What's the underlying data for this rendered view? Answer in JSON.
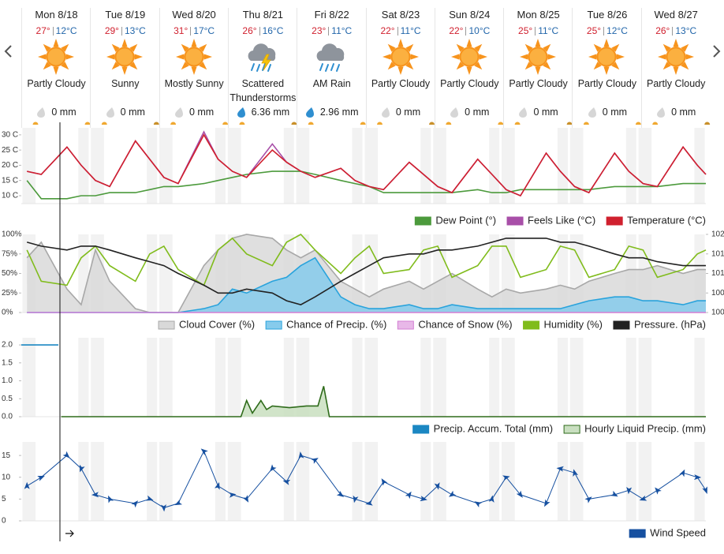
{
  "days": [
    {
      "date": "Mon 8/18",
      "high": "27°",
      "low": "12°C",
      "condition": "Partly Cloudy",
      "precip": "0 mm"
    },
    {
      "date": "Tue 8/19",
      "high": "29°",
      "low": "13°C",
      "condition": "Sunny",
      "precip": "0 mm"
    },
    {
      "date": "Wed 8/20",
      "high": "31°",
      "low": "17°C",
      "condition": "Mostly Sunny",
      "precip": "0 mm"
    },
    {
      "date": "Thu 8/21",
      "high": "26°",
      "low": "16°C",
      "condition": "Scattered Thunderstorms",
      "precip": "6.36 mm"
    },
    {
      "date": "Fri 8/22",
      "high": "23°",
      "low": "11°C",
      "condition": "AM Rain",
      "precip": "2.96 mm"
    },
    {
      "date": "Sat 8/23",
      "high": "22°",
      "low": "11°C",
      "condition": "Partly Cloudy",
      "precip": "0 mm"
    },
    {
      "date": "Sun 8/24",
      "high": "22°",
      "low": "10°C",
      "condition": "Partly Cloudy",
      "precip": "0 mm"
    },
    {
      "date": "Mon 8/25",
      "high": "25°",
      "low": "11°C",
      "condition": "Partly Cloudy",
      "precip": "0 mm"
    },
    {
      "date": "Tue 8/26",
      "high": "25°",
      "low": "12°C",
      "condition": "Partly Cloudy",
      "precip": "0 mm"
    },
    {
      "date": "Wed 8/27",
      "high": "26°",
      "low": "13°C",
      "condition": "Partly Cloudy",
      "precip": "0 mm"
    }
  ],
  "chart_data": [
    {
      "type": "line",
      "xlim": [
        0,
        240
      ],
      "ylim": [
        7.4,
        32.3
      ],
      "yticks": [
        {
          "value": 10,
          "label": "10 C"
        },
        {
          "value": 15,
          "label": "15 C"
        },
        {
          "value": 20,
          "label": "20 C"
        },
        {
          "value": 25,
          "label": "25 C"
        },
        {
          "value": 30,
          "label": "30 C"
        }
      ],
      "x": [
        2,
        7,
        16,
        21,
        26,
        31,
        40,
        45,
        50,
        55,
        64,
        69,
        74,
        79,
        88,
        93,
        98,
        103,
        112,
        117,
        122,
        127,
        136,
        141,
        146,
        151,
        160,
        165,
        170,
        175,
        184,
        189,
        194,
        199,
        208,
        213,
        218,
        223,
        232,
        237,
        240
      ],
      "series": [
        {
          "name": "Dew Point (°)",
          "color": "#4c9a3c",
          "values": [
            15,
            9,
            9,
            10,
            10,
            11,
            11,
            12,
            13,
            13,
            14,
            15,
            16,
            17,
            18,
            18,
            18,
            17,
            15,
            14,
            13,
            11,
            11,
            11,
            11,
            11,
            12,
            11,
            11,
            12,
            12,
            12,
            12,
            12,
            13,
            13,
            13,
            13,
            14,
            14,
            14
          ]
        },
        {
          "name": "Feels Like (°C)",
          "color": "#a84fa8",
          "values": [
            18,
            17,
            26,
            20,
            15,
            13,
            28,
            22,
            16,
            14,
            31,
            22,
            18,
            16,
            27,
            21,
            18,
            16,
            19,
            15,
            13,
            12,
            21,
            17,
            13,
            11,
            22,
            17,
            12,
            10,
            24,
            18,
            13,
            11,
            24,
            18,
            14,
            13,
            26,
            20,
            17
          ]
        },
        {
          "name": "Temperature (°C)",
          "color": "#d0202e",
          "values": [
            18,
            17,
            26,
            20,
            15,
            13,
            28,
            22,
            16,
            14,
            30,
            22,
            18,
            16,
            25,
            21,
            18,
            16,
            19,
            15,
            13,
            12,
            21,
            17,
            13,
            11,
            22,
            17,
            12,
            10,
            24,
            18,
            13,
            11,
            24,
            18,
            14,
            13,
            26,
            20,
            17
          ]
        }
      ]
    },
    {
      "type": "line",
      "xlim": [
        0,
        240
      ],
      "ylim": [
        0,
        100
      ],
      "y2lim": [
        1000,
        1020
      ],
      "yticks": [
        {
          "value": 0,
          "label": "0%"
        },
        {
          "value": 25,
          "label": "25%"
        },
        {
          "value": 50,
          "label": "50%"
        },
        {
          "value": 75,
          "label": "75%"
        },
        {
          "value": 100,
          "label": "100%"
        }
      ],
      "y2ticks": [
        {
          "value": 1000,
          "label": "100"
        },
        {
          "value": 1005,
          "label": "100"
        },
        {
          "value": 1010,
          "label": "101"
        },
        {
          "value": 1015,
          "label": "101"
        },
        {
          "value": 1020,
          "label": "102"
        }
      ],
      "x": [
        2,
        7,
        16,
        21,
        26,
        31,
        40,
        45,
        50,
        55,
        64,
        69,
        74,
        79,
        88,
        93,
        98,
        103,
        112,
        117,
        122,
        127,
        136,
        141,
        146,
        151,
        160,
        165,
        170,
        175,
        184,
        189,
        194,
        199,
        208,
        213,
        218,
        223,
        232,
        237,
        240
      ],
      "series": [
        {
          "name": "Cloud Cover (%)",
          "color": "#a8a8a8",
          "fill": "#d9d9d9",
          "type": "area",
          "values": [
            70,
            90,
            30,
            10,
            80,
            40,
            5,
            0,
            0,
            0,
            60,
            80,
            95,
            100,
            95,
            80,
            70,
            80,
            40,
            30,
            20,
            30,
            40,
            30,
            40,
            50,
            30,
            20,
            30,
            25,
            30,
            35,
            30,
            40,
            50,
            55,
            55,
            60,
            50,
            55,
            55
          ]
        },
        {
          "name": "Chance of Precip. (%)",
          "color": "#29a3dc",
          "fill": "#86cbec",
          "type": "area",
          "values": [
            0,
            0,
            0,
            0,
            0,
            0,
            0,
            0,
            0,
            0,
            5,
            10,
            30,
            25,
            40,
            45,
            60,
            70,
            20,
            10,
            5,
            5,
            10,
            5,
            5,
            10,
            5,
            5,
            5,
            5,
            5,
            5,
            10,
            15,
            20,
            20,
            15,
            15,
            10,
            15,
            15
          ]
        },
        {
          "name": "Chance of Snow (%)",
          "color": "#d37fd3",
          "fill": "#e8b8e8",
          "type": "area",
          "values": [
            0,
            0,
            0,
            0,
            0,
            0,
            0,
            0,
            0,
            0,
            0,
            0,
            0,
            0,
            0,
            0,
            0,
            0,
            0,
            0,
            0,
            0,
            0,
            0,
            0,
            0,
            0,
            0,
            0,
            0,
            0,
            0,
            0,
            0,
            0,
            0,
            0,
            0,
            0,
            0,
            0
          ]
        },
        {
          "name": "Humidity (%)",
          "color": "#80bc1c",
          "values": [
            80,
            40,
            35,
            70,
            85,
            60,
            40,
            75,
            85,
            55,
            35,
            80,
            95,
            75,
            60,
            90,
            100,
            80,
            50,
            70,
            85,
            50,
            55,
            80,
            85,
            45,
            60,
            85,
            85,
            45,
            55,
            85,
            80,
            45,
            55,
            85,
            80,
            45,
            55,
            75,
            80
          ]
        },
        {
          "name": "Pressure. (hPa)",
          "color": "#222222",
          "axis": "y2",
          "values": [
            1018,
            1017,
            1016,
            1017,
            1017,
            1016,
            1014,
            1013,
            1012,
            1010,
            1007,
            1005,
            1005,
            1006,
            1005,
            1003,
            1002,
            1004,
            1008,
            1010,
            1012,
            1014,
            1015,
            1015,
            1016,
            1016,
            1017,
            1018,
            1019,
            1019,
            1019,
            1018,
            1018,
            1017,
            1015,
            1014,
            1014,
            1013,
            1012,
            1012,
            1012
          ]
        }
      ]
    },
    {
      "type": "line",
      "xlim": [
        0,
        240
      ],
      "ylim": [
        0,
        2.2
      ],
      "yticks": [
        {
          "value": 0,
          "label": "0.0"
        },
        0.5,
        {
          "value": 1,
          "label": "1.0"
        },
        1.5,
        {
          "value": 2,
          "label": "2.0"
        }
      ],
      "series": [
        {
          "name": "Precip. Accum. Total (mm)",
          "color": "#1b87c2",
          "x": [
            0,
            13
          ],
          "values": [
            2.0,
            2.0
          ]
        },
        {
          "name": "Hourly Liquid Precip. (mm)",
          "color": "#2e6b1a",
          "fill": "#c9dfc0",
          "type": "area",
          "x": [
            14,
            77,
            79,
            81,
            84,
            86,
            88,
            94,
            100,
            104,
            106,
            108,
            110,
            240
          ],
          "values": [
            0,
            0,
            0.45,
            0.1,
            0.45,
            0.2,
            0.3,
            0.25,
            0.3,
            0.3,
            0.85,
            0,
            0,
            0
          ]
        }
      ]
    },
    {
      "type": "line",
      "xlim": [
        0,
        240
      ],
      "ylim": [
        0,
        18.1
      ],
      "yticks": [
        0,
        5,
        10,
        15
      ],
      "x": [
        2,
        7,
        16,
        21,
        26,
        31,
        40,
        45,
        50,
        55,
        64,
        69,
        74,
        79,
        88,
        93,
        98,
        103,
        112,
        117,
        122,
        127,
        136,
        141,
        146,
        151,
        160,
        165,
        170,
        175,
        184,
        189,
        194,
        199,
        208,
        213,
        218,
        223,
        232,
        237,
        240
      ],
      "series": [
        {
          "name": "Wind Speed",
          "color": "#1650a0",
          "markers": true,
          "values": [
            8,
            10,
            15,
            12,
            6,
            5,
            4,
            5,
            3,
            4,
            16,
            8,
            6,
            5,
            12,
            9,
            15,
            14,
            6,
            5,
            4,
            9,
            6,
            5,
            8,
            6,
            4,
            5,
            10,
            6,
            4,
            12,
            11,
            5,
            6,
            7,
            5,
            7,
            11,
            10,
            7
          ]
        }
      ]
    }
  ]
}
